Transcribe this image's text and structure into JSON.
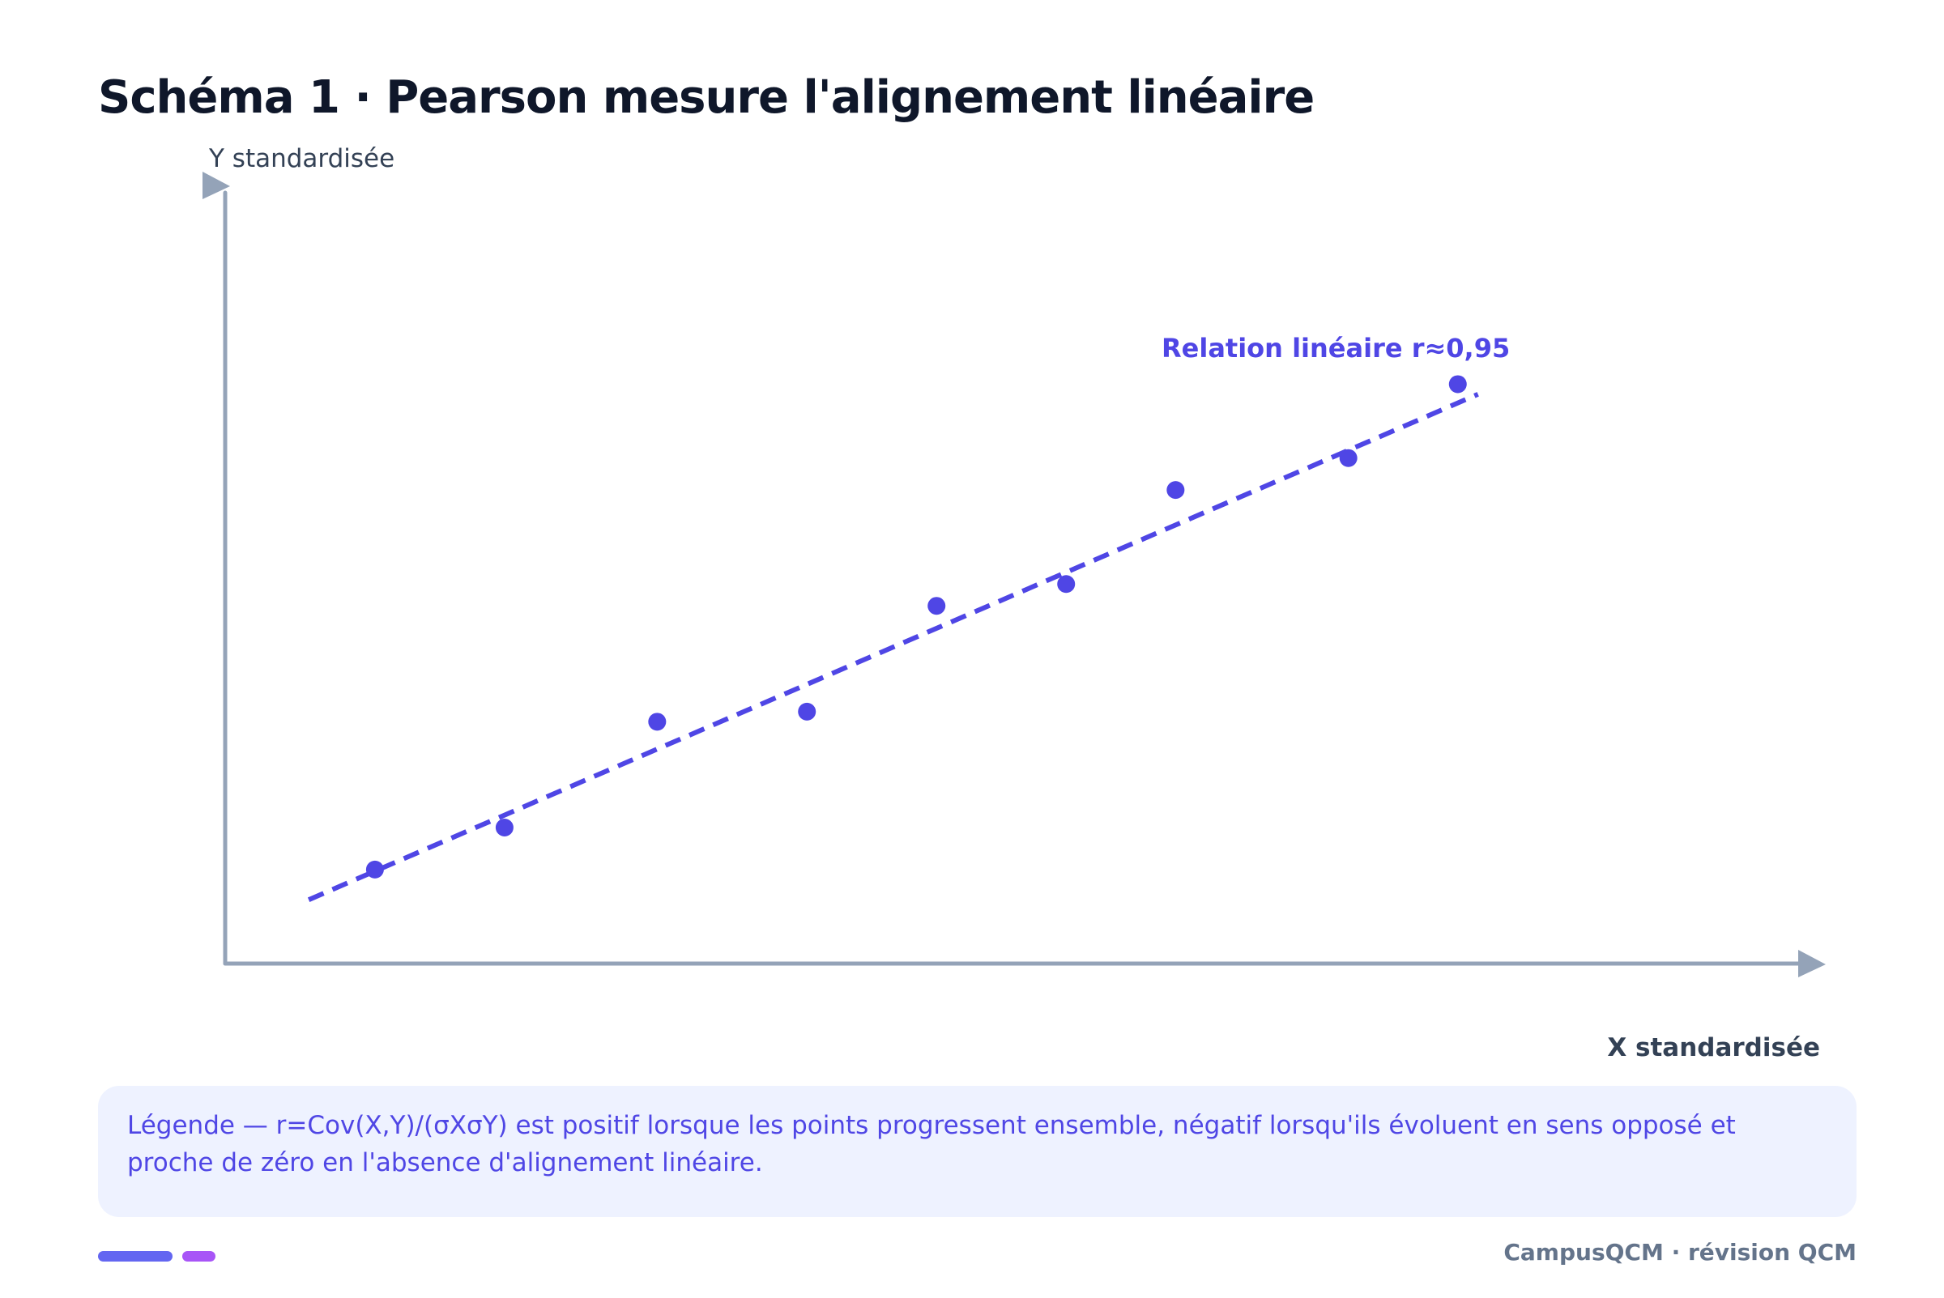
{
  "title": "Schéma 1 · Pearson mesure l'alignement linéaire",
  "chart_data": {
    "type": "scatter",
    "ylabel": "Y standardisée",
    "xlabel": "X standardisée",
    "annotation": "Relation linéaire r≈0,95",
    "xlim": [
      -2.12,
      3.37
    ],
    "ylim": [
      -1.93,
      2.66
    ],
    "grid": false,
    "points": [
      {
        "x": -1.6,
        "y": -1.37
      },
      {
        "x": -1.15,
        "y": -1.12
      },
      {
        "x": -0.62,
        "y": -0.49
      },
      {
        "x": -0.1,
        "y": -0.43
      },
      {
        "x": 0.35,
        "y": 0.2
      },
      {
        "x": 0.8,
        "y": 0.33
      },
      {
        "x": 1.18,
        "y": 0.89
      },
      {
        "x": 1.78,
        "y": 1.08
      },
      {
        "x": 2.16,
        "y": 1.52
      }
    ],
    "trendline": {
      "x": [
        -1.83,
        2.23
      ],
      "y": [
        -1.55,
        1.46
      ],
      "style": "dashed"
    }
  },
  "colors": {
    "accent": "#4f46e5",
    "axis": "#94a3b8",
    "title": "#0f172a",
    "axis_label": "#334155",
    "legend_bg": "#eef2ff",
    "legend_text": "#4f46e5",
    "footer": "#64748b",
    "pill_primary": "#6366f1",
    "pill_secondary": "#a855f7"
  },
  "legend": {
    "text": "Légende — r=Cov(X,Y)/(σXσY) est positif lorsque les points progressent ensemble, négatif lorsqu'ils évoluent en sens opposé et proche de zéro en l'absence d'alignement linéaire."
  },
  "footer": {
    "text": "CampusQCM · révision QCM"
  }
}
